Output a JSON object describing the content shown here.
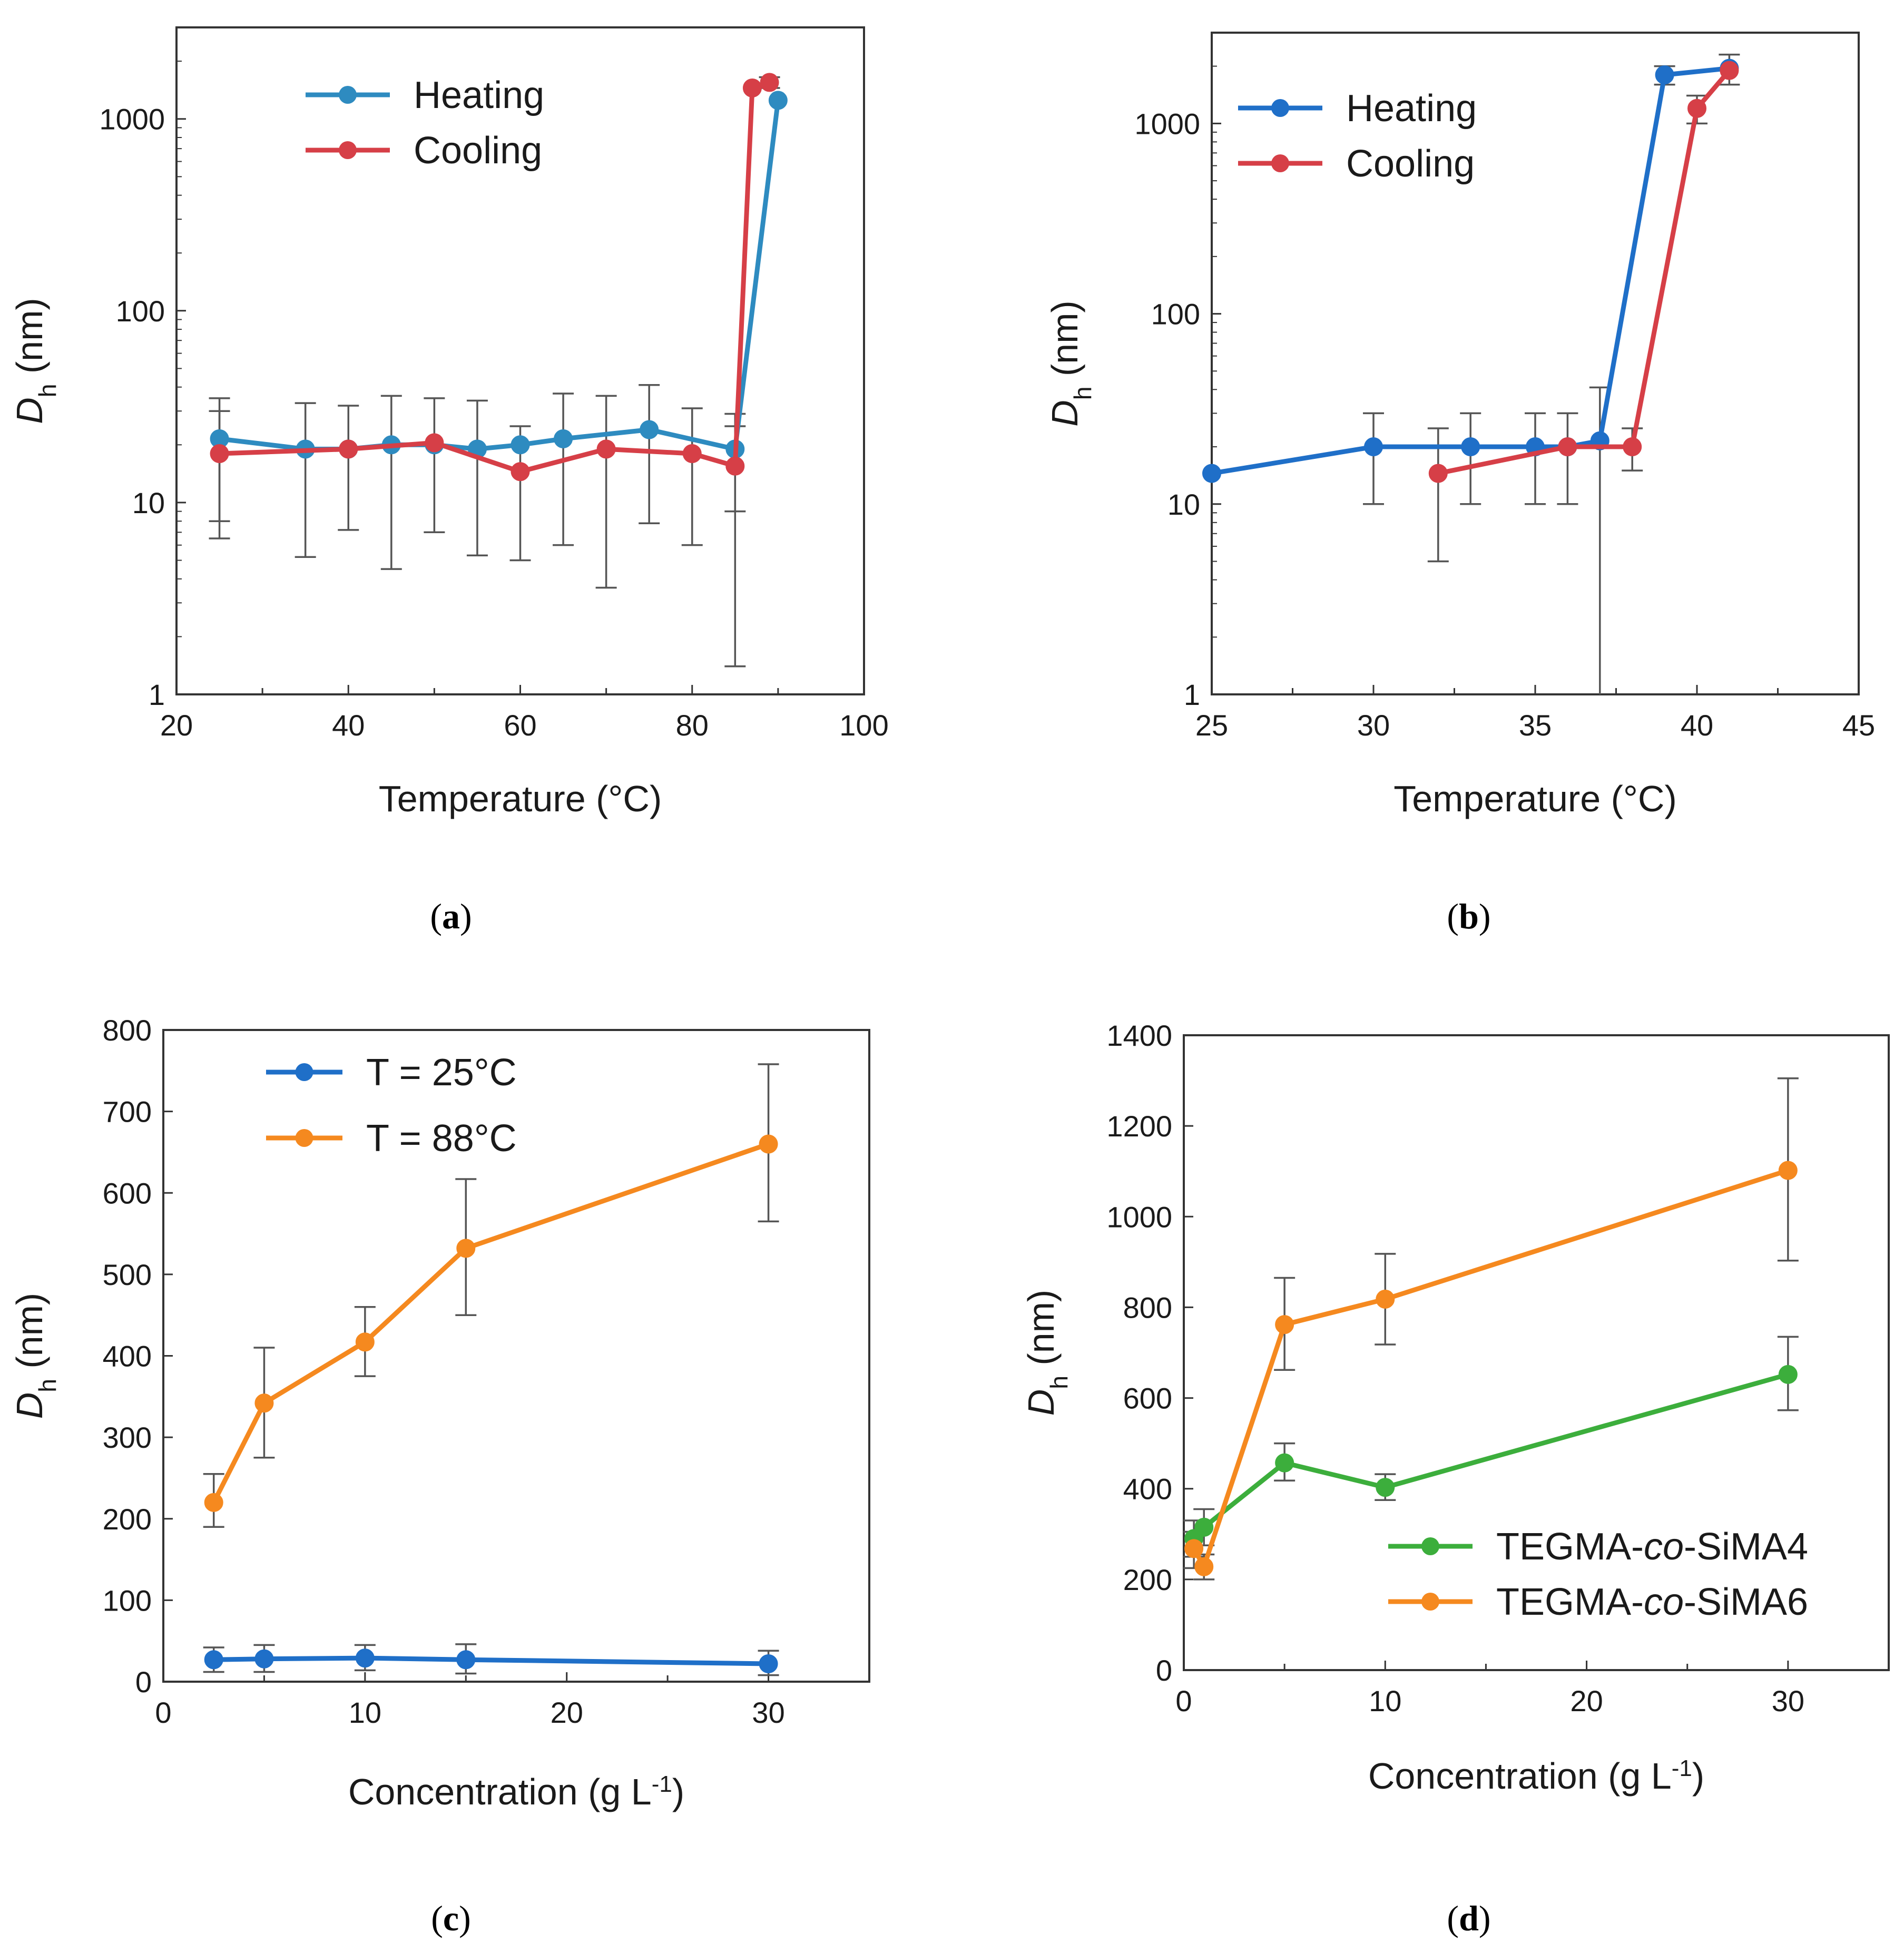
{
  "figure_captions": [
    "(a)",
    "(b)",
    "(c)",
    "(d)"
  ],
  "colors": {
    "heating_a": "#2e8bc0",
    "cooling": "#d63f47",
    "heating_b": "#1f6fc8",
    "t25": "#1f6fc8",
    "t88": "#f5891f",
    "sima4": "#3cae3c",
    "sima6": "#f5891f",
    "errorbar": "#555555"
  },
  "chart_data": [
    {
      "id": "a",
      "type": "line",
      "yscale": "log",
      "caption_label": "a",
      "xlabel": "Temperature (°C)",
      "ylabel_main": "D",
      "ylabel_sub": "h",
      "ylabel_unit": " (nm)",
      "xlim": [
        20,
        100
      ],
      "ylim": [
        1,
        3000
      ],
      "xticks": [
        20,
        40,
        60,
        80,
        100
      ],
      "yticks": [
        1,
        10,
        100,
        1000
      ],
      "legend_position": "top-left",
      "series": [
        {
          "name": "Heating",
          "color_key": "heating_a",
          "points": [
            [
              25,
              21.5
            ],
            [
              35,
              19
            ],
            [
              40,
              19
            ],
            [
              45,
              20
            ],
            [
              50,
              20
            ],
            [
              55,
              19
            ],
            [
              60,
              20
            ],
            [
              65,
              21.5
            ],
            [
              75,
              24
            ],
            [
              85,
              19
            ],
            [
              90,
              1250
            ]
          ],
          "errors": [
            [
              25,
              8,
              35
            ],
            [
              35,
              5.2,
              33
            ],
            [
              40,
              7.2,
              32
            ],
            [
              45,
              4.5,
              36
            ],
            [
              50,
              7,
              35
            ],
            [
              55,
              5.3,
              34
            ],
            [
              60,
              5,
              25
            ],
            [
              65,
              6,
              37
            ],
            [
              70,
              3.6,
              36
            ],
            [
              75,
              7.8,
              41
            ],
            [
              80,
              6,
              31
            ],
            [
              85,
              1.4,
              29
            ]
          ]
        },
        {
          "name": "Cooling",
          "color_key": "cooling",
          "points": [
            [
              25,
              18
            ],
            [
              40,
              19
            ],
            [
              50,
              20.5
            ],
            [
              60,
              14.5
            ],
            [
              70,
              19
            ],
            [
              80,
              18
            ],
            [
              85,
              15.5
            ],
            [
              87,
              1450
            ],
            [
              89,
              1550
            ]
          ],
          "errors": [
            [
              25,
              6.5,
              30
            ],
            [
              85,
              9,
              25
            ],
            [
              89,
              1450,
              1650
            ]
          ]
        }
      ]
    },
    {
      "id": "b",
      "type": "line",
      "yscale": "log",
      "caption_label": "b",
      "xlabel": "Temperature (°C)",
      "ylabel_main": "D",
      "ylabel_sub": "h",
      "ylabel_unit": " (nm)",
      "xlim": [
        25,
        45
      ],
      "ylim": [
        1,
        3000
      ],
      "xticks": [
        25,
        30,
        35,
        40,
        45
      ],
      "yticks": [
        1,
        10,
        100,
        1000
      ],
      "legend_position": "top-left",
      "series": [
        {
          "name": "Heating",
          "color_key": "heating_b",
          "points": [
            [
              25,
              14.5
            ],
            [
              30,
              20
            ],
            [
              33,
              20
            ],
            [
              35,
              20
            ],
            [
              36,
              20
            ],
            [
              37,
              21.5
            ],
            [
              39,
              1800
            ],
            [
              41,
              1950
            ]
          ],
          "errors": [
            [
              30,
              10,
              30
            ],
            [
              33,
              10,
              30
            ],
            [
              35,
              10,
              30
            ],
            [
              36,
              10,
              30
            ],
            [
              37,
              1,
              41
            ],
            [
              39,
              1600,
              2000
            ],
            [
              41,
              1600,
              2300
            ]
          ]
        },
        {
          "name": "Cooling",
          "color_key": "cooling",
          "points": [
            [
              32,
              14.5
            ],
            [
              36,
              20
            ],
            [
              38,
              20
            ],
            [
              40,
              1200
            ],
            [
              41,
              1900
            ]
          ],
          "errors": [
            [
              32,
              5,
              25
            ],
            [
              38,
              15,
              25
            ],
            [
              40,
              1000,
              1400
            ]
          ]
        }
      ]
    },
    {
      "id": "c",
      "type": "line",
      "yscale": "linear",
      "caption_label": "c",
      "xlabel_main": "Concentration (g L",
      "xlabel_sup": "-1",
      "xlabel_end": ")",
      "ylabel_main": "D",
      "ylabel_sub": "h",
      "ylabel_unit": " (nm)",
      "xlim": [
        0,
        35
      ],
      "ylim": [
        0,
        800
      ],
      "xticks": [
        0,
        10,
        20,
        30
      ],
      "yticks": [
        0,
        100,
        200,
        300,
        400,
        500,
        600,
        700,
        800
      ],
      "legend_position": "top-left",
      "series": [
        {
          "name": "T = 25°C",
          "color_key": "t25",
          "points": [
            [
              2.5,
              27
            ],
            [
              5,
              28
            ],
            [
              10,
              29
            ],
            [
              15,
              27
            ],
            [
              30,
              22
            ]
          ],
          "errors": [
            [
              2.5,
              12,
              42
            ],
            [
              5,
              12,
              45
            ],
            [
              10,
              14,
              45
            ],
            [
              15,
              10,
              46
            ],
            [
              30,
              8,
              38
            ]
          ]
        },
        {
          "name": "T = 88°C",
          "color_key": "t88",
          "points": [
            [
              2.5,
              220
            ],
            [
              5,
              342
            ],
            [
              10,
              417
            ],
            [
              15,
              532
            ],
            [
              30,
              660
            ]
          ],
          "errors": [
            [
              2.5,
              190,
              255
            ],
            [
              5,
              275,
              410
            ],
            [
              10,
              375,
              460
            ],
            [
              15,
              450,
              617
            ],
            [
              30,
              565,
              758
            ]
          ]
        }
      ]
    },
    {
      "id": "d",
      "type": "line",
      "yscale": "linear",
      "caption_label": "d",
      "xlabel_main": "Concentration (g L",
      "xlabel_sup": "-1",
      "xlabel_end": ")",
      "ylabel_main": "D",
      "ylabel_sub": "h",
      "ylabel_unit": " (nm)",
      "xlim": [
        0,
        35
      ],
      "ylim": [
        0,
        1400
      ],
      "xticks": [
        0,
        10,
        20,
        30
      ],
      "yticks": [
        0,
        200,
        400,
        600,
        800,
        1000,
        1200,
        1400
      ],
      "legend_position": "bottom-right",
      "series": [
        {
          "name_pre": "TEGMA-",
          "name_it": "co",
          "name_post": "-SiMA4",
          "color_key": "sima4",
          "points": [
            [
              0.5,
              290
            ],
            [
              1,
              315
            ],
            [
              5,
              457
            ],
            [
              10,
              403
            ],
            [
              30,
              652
            ]
          ],
          "errors": [
            [
              0.5,
              250,
              330
            ],
            [
              1,
              275,
              355
            ],
            [
              5,
              418,
              500
            ],
            [
              10,
              375,
              432
            ],
            [
              30,
              573,
              735
            ]
          ]
        },
        {
          "name_pre": "TEGMA-",
          "name_it": "co",
          "name_post": "-SiMA6",
          "color_key": "sima6",
          "points": [
            [
              0.5,
              268
            ],
            [
              1,
              228
            ],
            [
              5,
              762
            ],
            [
              10,
              818
            ],
            [
              30,
              1102
            ]
          ],
          "errors": [
            [
              0.5,
              225,
              305
            ],
            [
              1,
              200,
              255
            ],
            [
              5,
              662,
              865
            ],
            [
              10,
              718,
              918
            ],
            [
              30,
              903,
              1305
            ]
          ]
        }
      ]
    }
  ]
}
